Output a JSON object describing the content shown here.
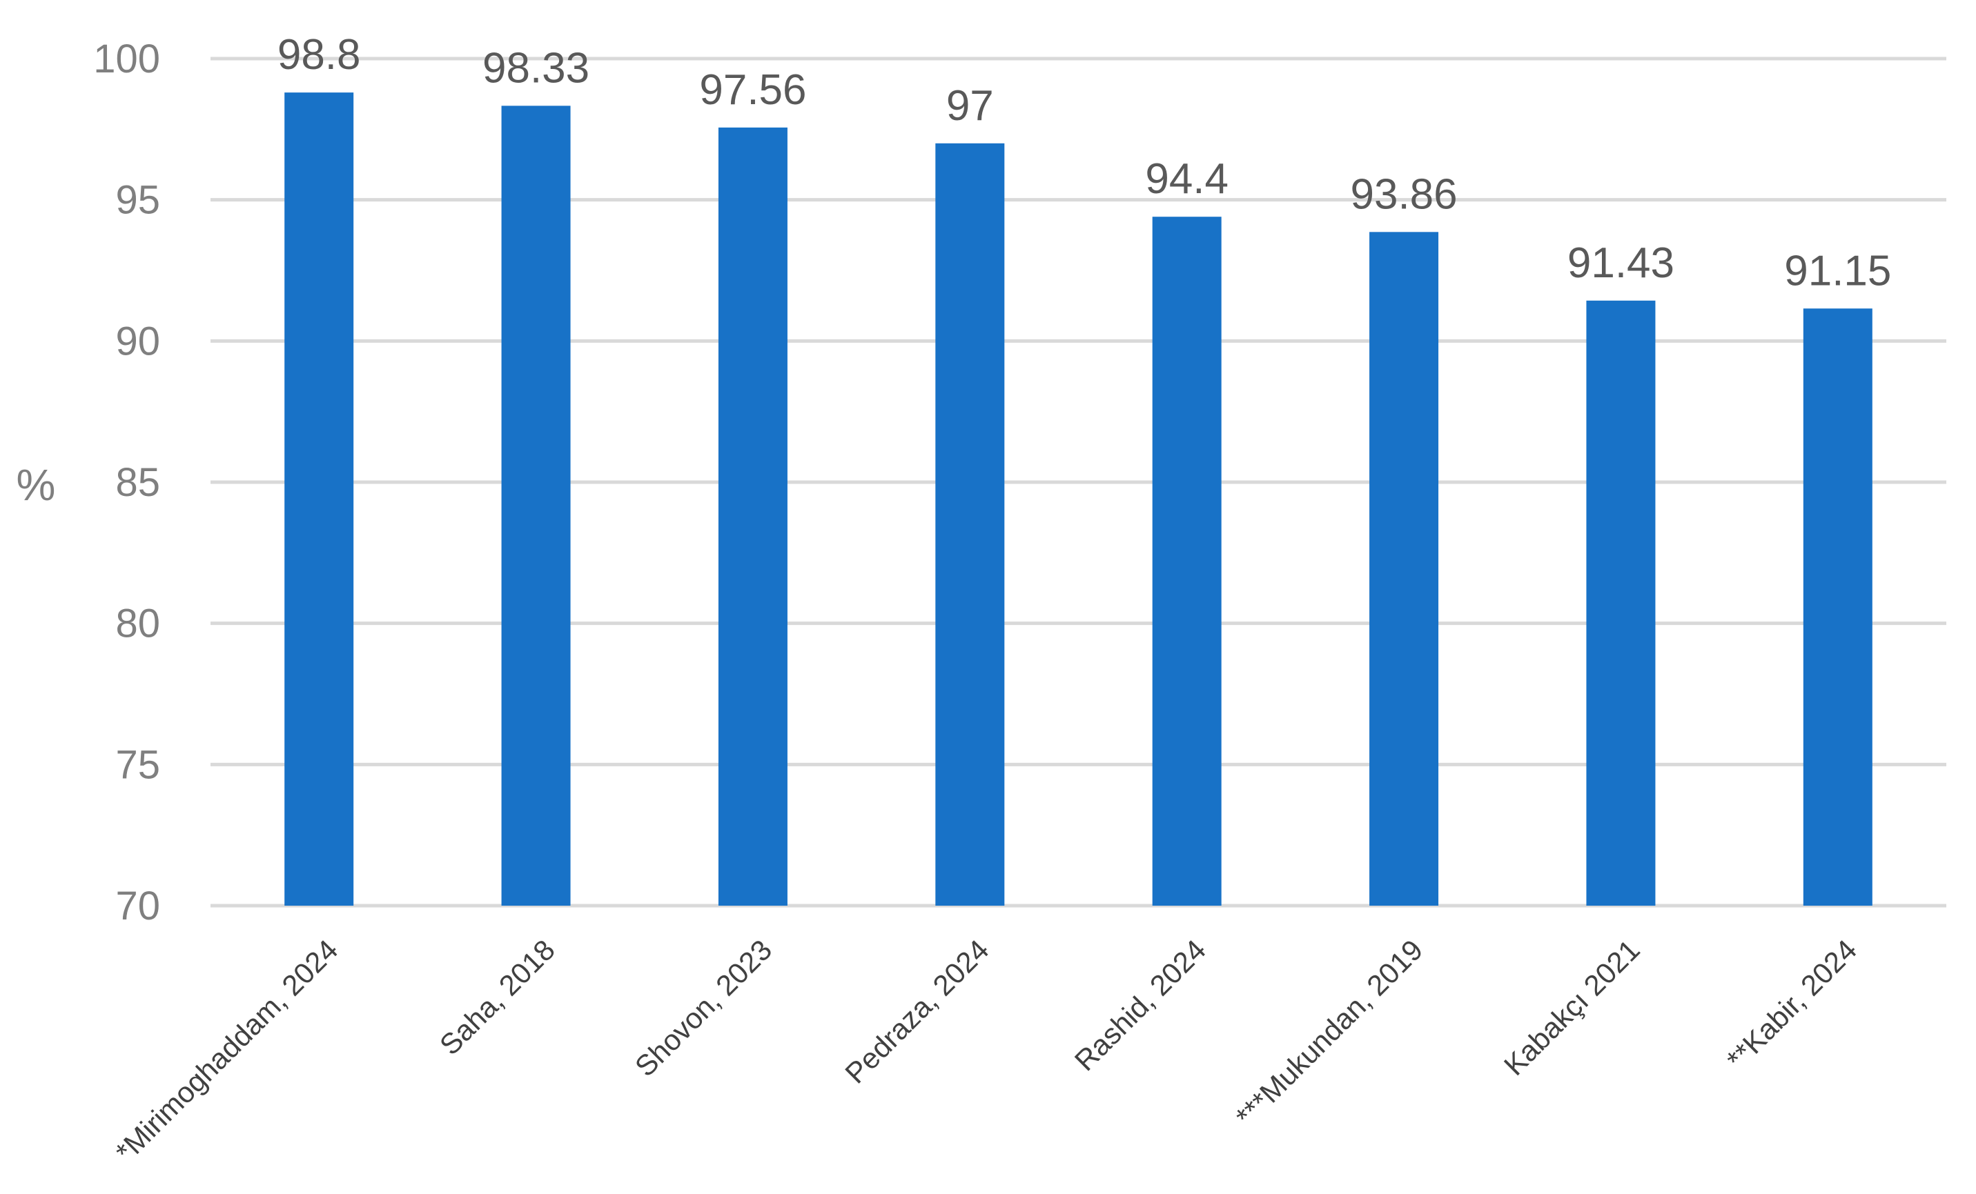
{
  "chart_data": {
    "type": "bar",
    "title": "",
    "xlabel": "",
    "ylabel": "%",
    "ylim": [
      70,
      100
    ],
    "yticks": [
      70,
      75,
      80,
      85,
      90,
      95,
      100
    ],
    "grid": true,
    "legend": "none",
    "bar_color": "#1872c7",
    "categories": [
      "*Mirimoghaddam, 2024",
      "Saha, 2018",
      "Shovon, 2023",
      "Pedraza, 2024",
      "Rashid, 2024",
      "***Mukundan, 2019",
      "Kabakçı 2021",
      "**Kabir, 2024"
    ],
    "values": [
      98.8,
      98.33,
      97.56,
      97,
      94.4,
      93.86,
      91.43,
      91.15
    ],
    "data_labels": [
      "98.8",
      "98.33",
      "97.56",
      "97",
      "94.4",
      "93.86",
      "91.43",
      "91.15"
    ]
  }
}
